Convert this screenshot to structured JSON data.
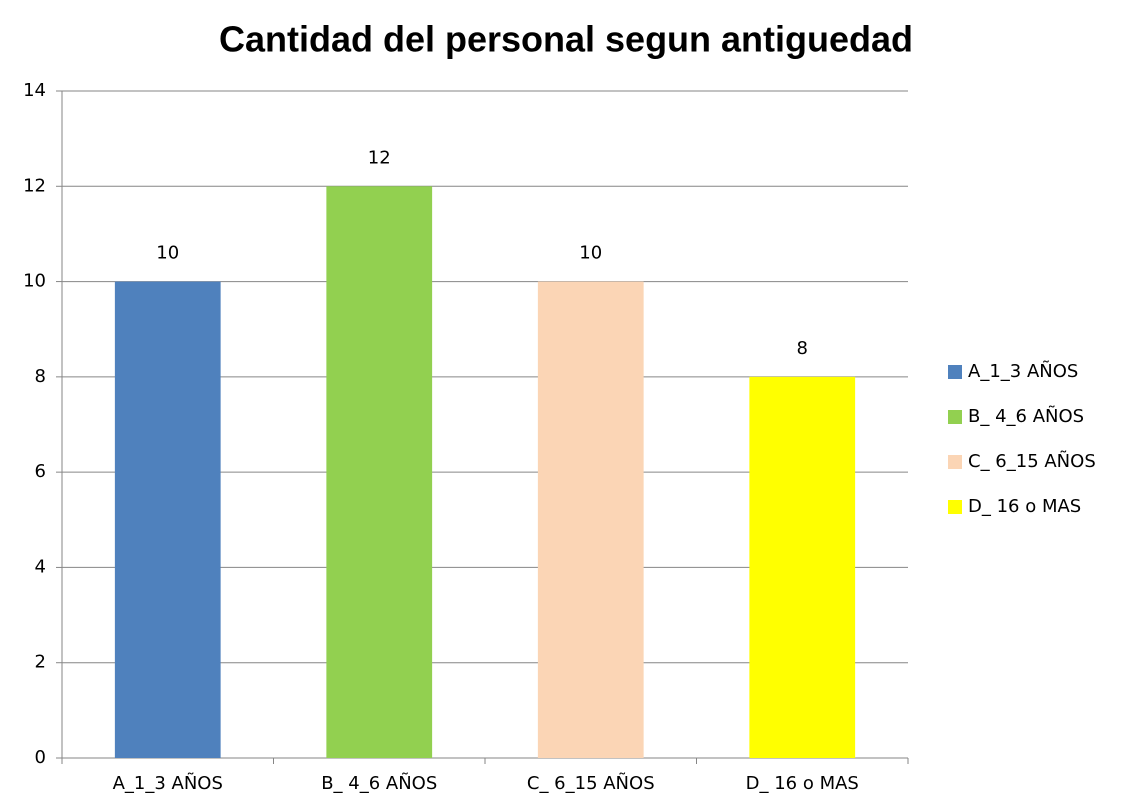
{
  "chart_data": {
    "type": "bar",
    "title": "Cantidad  del personal segun antiguedad",
    "categories": [
      "A_1_3 AÑOS",
      "B_ 4_6 AÑOS",
      "C_ 6_15 AÑOS",
      "D_ 16 o MAS"
    ],
    "values": [
      10,
      12,
      10,
      8
    ],
    "colors": [
      "#4f81bd",
      "#92d050",
      "#fbd5b5",
      "#ffff00"
    ],
    "ylim": [
      0,
      14
    ],
    "yticks": [
      0,
      2,
      4,
      6,
      8,
      10,
      12,
      14
    ],
    "grid": true,
    "legend": "right"
  }
}
